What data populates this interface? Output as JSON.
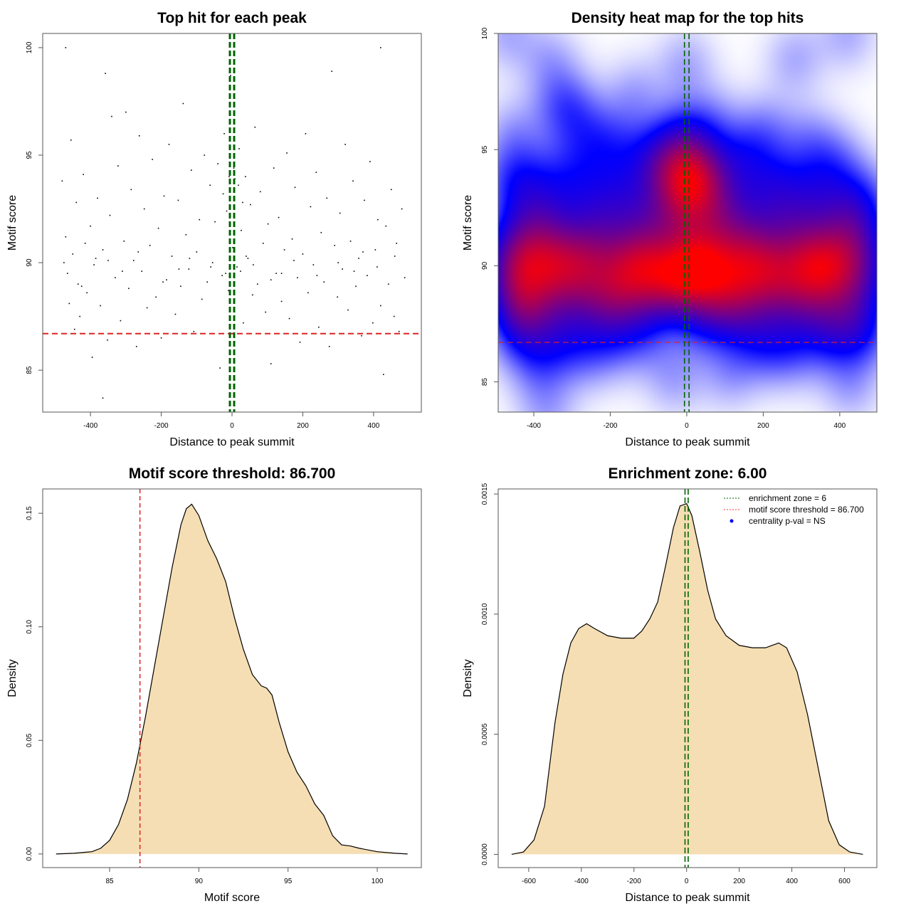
{
  "chart_data": [
    {
      "type": "scatter",
      "title": "Top hit for each peak",
      "xlabel": "Distance to peak summit",
      "ylabel": "Motif score",
      "xlim": [
        -535,
        535
      ],
      "ylim": [
        83.05,
        100.66
      ],
      "xticks": [
        -400,
        -200,
        0,
        200,
        400
      ],
      "yticks": [
        85,
        90,
        95,
        100
      ],
      "threshold": 86.7,
      "enrichment_zone": [
        -6,
        6
      ],
      "points": [
        [
          -480,
          93.8
        ],
        [
          -470,
          91.2
        ],
        [
          -465,
          89.5
        ],
        [
          -460,
          88.1
        ],
        [
          -455,
          95.7
        ],
        [
          -450,
          90.4
        ],
        [
          -445,
          86.9
        ],
        [
          -440,
          92.8
        ],
        [
          -435,
          89.0
        ],
        [
          -430,
          87.5
        ],
        [
          -420,
          94.1
        ],
        [
          -415,
          90.9
        ],
        [
          -410,
          88.6
        ],
        [
          -400,
          91.7
        ],
        [
          -395,
          85.6
        ],
        [
          -390,
          89.9
        ],
        [
          -380,
          93.0
        ],
        [
          -372,
          88.0
        ],
        [
          -365,
          90.6
        ],
        [
          -358,
          98.8
        ],
        [
          -352,
          86.4
        ],
        [
          -345,
          92.2
        ],
        [
          -340,
          96.8
        ],
        [
          -330,
          89.3
        ],
        [
          -322,
          94.5
        ],
        [
          -315,
          87.3
        ],
        [
          -305,
          91.0
        ],
        [
          -300,
          97.0
        ],
        [
          -292,
          88.8
        ],
        [
          -285,
          93.4
        ],
        [
          -278,
          90.1
        ],
        [
          -270,
          86.1
        ],
        [
          -262,
          95.9
        ],
        [
          -255,
          89.6
        ],
        [
          -248,
          92.5
        ],
        [
          -240,
          87.9
        ],
        [
          -232,
          90.8
        ],
        [
          -225,
          94.8
        ],
        [
          -215,
          88.4
        ],
        [
          -208,
          91.6
        ],
        [
          -200,
          86.5
        ],
        [
          -192,
          93.1
        ],
        [
          -185,
          89.2
        ],
        [
          -178,
          95.5
        ],
        [
          -170,
          90.3
        ],
        [
          -160,
          87.6
        ],
        [
          -152,
          92.9
        ],
        [
          -145,
          88.9
        ],
        [
          -138,
          97.4
        ],
        [
          -130,
          91.3
        ],
        [
          -122,
          89.7
        ],
        [
          -115,
          94.3
        ],
        [
          -108,
          86.8
        ],
        [
          -100,
          90.5
        ],
        [
          -92,
          92.0
        ],
        [
          -85,
          88.3
        ],
        [
          -78,
          95.0
        ],
        [
          -70,
          89.1
        ],
        [
          -62,
          93.6
        ],
        [
          -55,
          90.0
        ],
        [
          -48,
          91.9
        ],
        [
          -40,
          94.6
        ],
        [
          -34,
          85.1
        ],
        [
          -28,
          89.4
        ],
        [
          -22,
          96.0
        ],
        [
          -15,
          92.4
        ],
        [
          -10,
          88.7
        ],
        [
          -4,
          98.7
        ],
        [
          2,
          90.7
        ],
        [
          8,
          93.9
        ],
        [
          14,
          89.8
        ],
        [
          20,
          95.3
        ],
        [
          26,
          91.5
        ],
        [
          32,
          87.2
        ],
        [
          38,
          94.0
        ],
        [
          45,
          90.2
        ],
        [
          52,
          92.7
        ],
        [
          58,
          88.5
        ],
        [
          65,
          96.3
        ],
        [
          72,
          89.0
        ],
        [
          80,
          93.3
        ],
        [
          88,
          90.9
        ],
        [
          95,
          87.7
        ],
        [
          102,
          91.8
        ],
        [
          110,
          85.3
        ],
        [
          118,
          94.4
        ],
        [
          125,
          89.5
        ],
        [
          132,
          92.1
        ],
        [
          140,
          88.2
        ],
        [
          148,
          90.6
        ],
        [
          155,
          95.1
        ],
        [
          162,
          87.4
        ],
        [
          170,
          91.1
        ],
        [
          178,
          93.5
        ],
        [
          185,
          89.3
        ],
        [
          192,
          86.3
        ],
        [
          200,
          90.4
        ],
        [
          208,
          96.0
        ],
        [
          215,
          88.6
        ],
        [
          222,
          92.6
        ],
        [
          230,
          89.9
        ],
        [
          238,
          94.2
        ],
        [
          245,
          87.0
        ],
        [
          252,
          91.4
        ],
        [
          260,
          89.1
        ],
        [
          268,
          93.0
        ],
        [
          275,
          86.1
        ],
        [
          282,
          98.9
        ],
        [
          290,
          90.8
        ],
        [
          298,
          88.4
        ],
        [
          305,
          92.3
        ],
        [
          312,
          89.7
        ],
        [
          320,
          95.5
        ],
        [
          328,
          87.8
        ],
        [
          335,
          91.0
        ],
        [
          342,
          93.8
        ],
        [
          350,
          88.9
        ],
        [
          358,
          90.2
        ],
        [
          366,
          86.6
        ],
        [
          374,
          92.9
        ],
        [
          382,
          89.4
        ],
        [
          390,
          94.7
        ],
        [
          398,
          87.2
        ],
        [
          405,
          90.6
        ],
        [
          412,
          92.0
        ],
        [
          420,
          88.0
        ],
        [
          428,
          84.8
        ],
        [
          435,
          91.7
        ],
        [
          442,
          89.0
        ],
        [
          450,
          93.4
        ],
        [
          458,
          87.5
        ],
        [
          465,
          90.9
        ],
        [
          472,
          86.8
        ],
        [
          480,
          92.5
        ],
        [
          488,
          89.3
        ],
        [
          -475,
          90.0
        ],
        [
          -425,
          88.9
        ],
        [
          -385,
          90.2
        ],
        [
          -310,
          89.6
        ],
        [
          -265,
          90.5
        ],
        [
          -195,
          89.1
        ],
        [
          -120,
          90.2
        ],
        [
          -60,
          89.8
        ],
        [
          -18,
          89.5
        ],
        [
          24,
          89.6
        ],
        [
          60,
          89.9
        ],
        [
          110,
          89.2
        ],
        [
          175,
          90.1
        ],
        [
          240,
          89.4
        ],
        [
          300,
          90.0
        ],
        [
          345,
          89.6
        ],
        [
          410,
          89.8
        ],
        [
          460,
          90.3
        ],
        [
          -350,
          90.1
        ],
        [
          -150,
          89.7
        ],
        [
          40,
          90.3
        ],
        [
          140,
          89.5
        ],
        [
          370,
          90.5
        ],
        [
          5,
          94.4
        ],
        [
          -8,
          94.0
        ],
        [
          18,
          93.6
        ],
        [
          -25,
          93.2
        ],
        [
          30,
          92.8
        ],
        [
          -470,
          100.0
        ],
        [
          420,
          100.0
        ],
        [
          -365,
          83.7
        ]
      ]
    },
    {
      "type": "heatmap",
      "title": "Density heat map for the top hits",
      "xlabel": "Distance to peak summit",
      "ylabel": "Motif score",
      "xlim": [
        -493,
        497
      ],
      "ylim": [
        83.7,
        100
      ],
      "xticks": [
        -400,
        -200,
        0,
        200,
        400
      ],
      "yticks": [
        85,
        90,
        95,
        100
      ],
      "threshold": 86.7,
      "enrichment_zone": [
        -6,
        6
      ],
      "colors": {
        "low": "#ffffff",
        "mid": "#0000ff",
        "high": "#ff0000"
      },
      "source": "points of panel 1"
    },
    {
      "type": "area",
      "title": "Motif score threshold: 86.700",
      "xlabel": "Motif score",
      "ylabel": "Density",
      "xlim": [
        81.25,
        102.47
      ],
      "ylim": [
        -0.006,
        0.1607
      ],
      "xticks": [
        85,
        90,
        95,
        100
      ],
      "yticks": [
        0.0,
        0.05,
        0.1,
        0.15
      ],
      "ytick_labels": [
        "0.00",
        "0.05",
        "0.10",
        "0.15"
      ],
      "threshold": 86.7,
      "x": [
        82,
        83,
        84,
        84.5,
        85,
        85.5,
        86,
        86.5,
        87,
        87.5,
        88,
        88.5,
        89,
        89.3,
        89.6,
        90,
        90.5,
        91,
        91.5,
        92,
        92.5,
        93,
        93.5,
        93.8,
        94.1,
        94.5,
        95,
        95.5,
        96,
        96.5,
        97,
        97.5,
        98,
        98.5,
        99,
        100,
        101,
        101.7
      ],
      "y": [
        0,
        0.0003,
        0.001,
        0.0025,
        0.006,
        0.013,
        0.024,
        0.04,
        0.06,
        0.082,
        0.104,
        0.126,
        0.145,
        0.152,
        0.154,
        0.149,
        0.138,
        0.13,
        0.12,
        0.104,
        0.09,
        0.079,
        0.074,
        0.073,
        0.07,
        0.058,
        0.045,
        0.036,
        0.03,
        0.022,
        0.017,
        0.008,
        0.004,
        0.0035,
        0.0025,
        0.001,
        0.0003,
        0
      ]
    },
    {
      "type": "area",
      "title": "Enrichment zone: 6.00",
      "xlabel": "Distance to peak summit",
      "ylabel": "Density",
      "xlim": [
        -716,
        723
      ],
      "ylim": [
        -5.5e-05,
        0.001521
      ],
      "xticks": [
        -600,
        -400,
        -200,
        0,
        200,
        400,
        600
      ],
      "yticks": [
        0,
        0.0005,
        0.001,
        0.0015
      ],
      "ytick_labels": [
        "0.0000",
        "0.0005",
        "0.0010",
        "0.0015"
      ],
      "enrichment_zone": [
        -6,
        6
      ],
      "x": [
        -665,
        -620,
        -580,
        -540,
        -500,
        -470,
        -440,
        -410,
        -380,
        -350,
        -300,
        -250,
        -200,
        -170,
        -140,
        -110,
        -80,
        -50,
        -25,
        0,
        20,
        50,
        80,
        110,
        150,
        200,
        250,
        300,
        350,
        380,
        420,
        460,
        500,
        540,
        580,
        620,
        670
      ],
      "y": [
        0,
        1e-05,
        6e-05,
        0.0002,
        0.00055,
        0.00075,
        0.00088,
        0.00094,
        0.00096,
        0.00094,
        0.00091,
        0.0009,
        0.0009,
        0.00093,
        0.00098,
        0.00105,
        0.0012,
        0.00136,
        0.00145,
        0.00146,
        0.00141,
        0.00126,
        0.0011,
        0.00098,
        0.00091,
        0.00087,
        0.00086,
        0.00086,
        0.00088,
        0.00086,
        0.00076,
        0.00058,
        0.00036,
        0.00014,
        4e-05,
        1e-05,
        0
      ],
      "legend": {
        "position": "top-right",
        "entries": [
          {
            "label": "enrichment zone = 6",
            "color": "#006400",
            "style": "dotted"
          },
          {
            "label": "motif score threshold = 86.700",
            "color": "#ff3333",
            "style": "dotted"
          },
          {
            "label": "centrality p-val = NS",
            "color": "#0000ff",
            "style": "point"
          }
        ]
      }
    }
  ]
}
